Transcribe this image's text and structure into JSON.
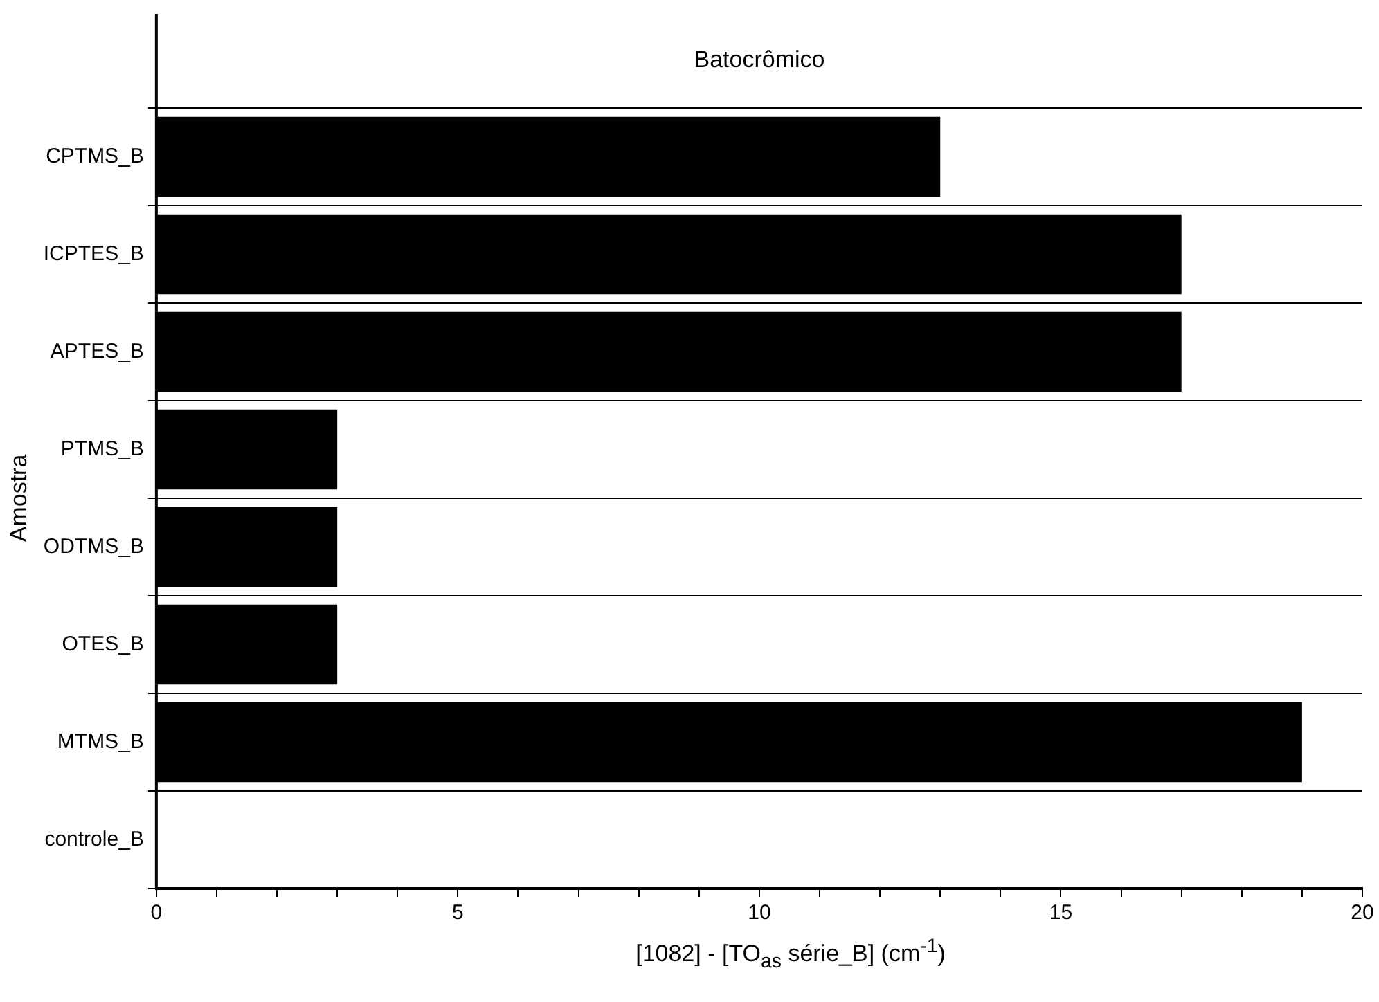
{
  "chart_data": {
    "type": "bar",
    "orientation": "horizontal",
    "title": "Batocrômico",
    "xlabel": "[1082] - [TO$_{as}$ série_B]    (cm$^{-1}$)",
    "ylabel": "Amostra",
    "categories": [
      "CPTMS_B",
      "ICPTES_B",
      "APTES_B",
      "PTMS_B",
      "ODTMS_B",
      "OTES_B",
      "MTMS_B",
      "controle_B"
    ],
    "values": [
      13,
      17,
      17,
      3,
      3,
      3,
      19,
      0
    ],
    "color": "#000000",
    "xlim": [
      0,
      20
    ],
    "xticks": [
      0,
      {
        "value": 1,
        "label": null
      },
      {
        "value": 2,
        "label": null
      },
      {
        "value": 3,
        "label": null
      },
      {
        "value": 4,
        "label": null
      },
      5,
      {
        "value": 6,
        "label": null
      },
      {
        "value": 7,
        "label": null
      },
      {
        "value": 8,
        "label": null
      },
      {
        "value": 9,
        "label": null
      },
      10,
      {
        "value": 11,
        "label": null
      },
      {
        "value": 12,
        "label": null
      },
      {
        "value": 13,
        "label": null
      },
      {
        "value": 14,
        "label": null
      },
      15,
      {
        "value": 16,
        "label": null
      },
      {
        "value": 17,
        "label": null
      },
      {
        "value": 18,
        "label": null
      },
      {
        "value": 19,
        "label": null
      },
      20
    ],
    "grid": "y",
    "legend": false
  }
}
